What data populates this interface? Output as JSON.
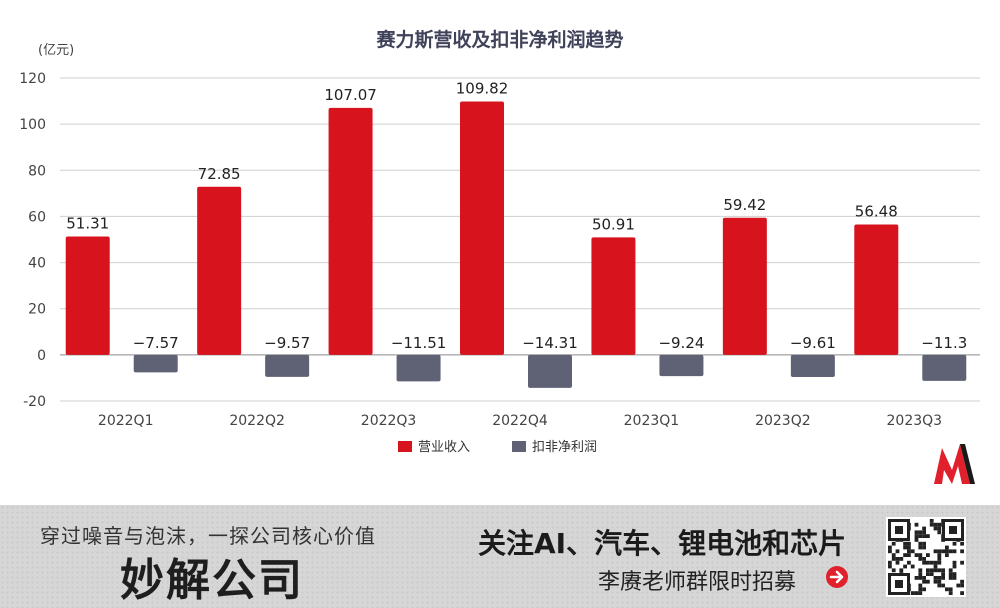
{
  "chart_data": {
    "type": "bar",
    "title": "赛力斯营收及扣非净利润趋势",
    "ylabel": "(亿元)",
    "ylim": [
      -20,
      120
    ],
    "yticks": [
      -20,
      0,
      20,
      40,
      60,
      80,
      100,
      120
    ],
    "grid": true,
    "legend_position": "bottom-center",
    "categories": [
      "2022Q1",
      "2022Q2",
      "2022Q3",
      "2022Q4",
      "2023Q1",
      "2023Q2",
      "2023Q3"
    ],
    "series": [
      {
        "name": "营业收入",
        "color": "#d7141e",
        "values": [
          51.31,
          72.85,
          107.07,
          109.82,
          50.91,
          59.42,
          56.48
        ],
        "labels": [
          "51.31",
          "72.85",
          "107.07",
          "109.82",
          "50.91",
          "59.42",
          "56.48"
        ]
      },
      {
        "name": "扣非净利润",
        "color": "#5f6275",
        "values": [
          -7.57,
          -9.57,
          -11.51,
          -14.31,
          -9.24,
          -9.61,
          -11.3
        ],
        "labels": [
          "−7.57",
          "−9.57",
          "−11.51",
          "−14.31",
          "−9.24",
          "−9.61",
          "−11.3"
        ]
      }
    ]
  },
  "banner": {
    "slogan": "穿过噪音与泡沫，一探公司核心价值",
    "brand": "妙解公司",
    "focus": "关注AI、汽车、锂电池和芯片",
    "recruit": "李赓老师群限时招募",
    "arrow_icon": "arrow-right-circle-icon",
    "qr_icon": "qr-code-icon"
  },
  "logo": {
    "icon": "m-logo-icon",
    "colors": [
      "#e0202a",
      "#1a1a1a"
    ]
  }
}
